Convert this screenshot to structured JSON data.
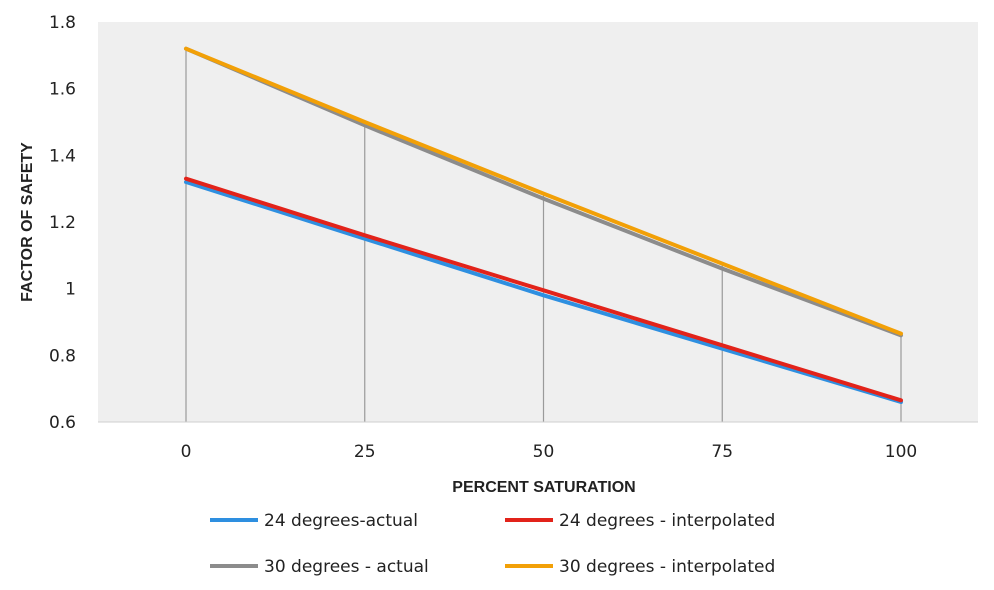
{
  "chart_data": {
    "type": "line",
    "title": "",
    "xlabel": "PERCENT SATURATION",
    "ylabel": "FACTOR OF SAFETY",
    "x": [
      0,
      25,
      50,
      75,
      100
    ],
    "x_tick_labels": [
      "0",
      "25",
      "50",
      "75",
      "100"
    ],
    "ylim": [
      0.6,
      1.8
    ],
    "y_ticks": [
      0.6,
      0.8,
      1,
      1.2,
      1.4,
      1.6,
      1.8
    ],
    "y_tick_labels": [
      "0.6",
      "0.8",
      "1",
      "1.2",
      "1.4",
      "1.6",
      "1.8"
    ],
    "grid": "vertical drop lines at each x category",
    "legend_position": "bottom",
    "series": [
      {
        "name": "24 degrees-actual",
        "color": "#2E8FE0",
        "values": [
          1.32,
          1.15,
          0.98,
          0.82,
          0.66
        ]
      },
      {
        "name": "24 degrees - interpolated",
        "color": "#E2231A",
        "values": [
          1.33,
          1.16,
          0.995,
          0.83,
          0.665
        ]
      },
      {
        "name": "30 degrees - actual",
        "color": "#8C8C8C",
        "values": [
          1.72,
          1.49,
          1.27,
          1.06,
          0.86
        ]
      },
      {
        "name": "30 degrees - interpolated",
        "color": "#F2A007",
        "values": [
          1.72,
          1.5,
          1.285,
          1.075,
          0.865
        ]
      }
    ]
  }
}
